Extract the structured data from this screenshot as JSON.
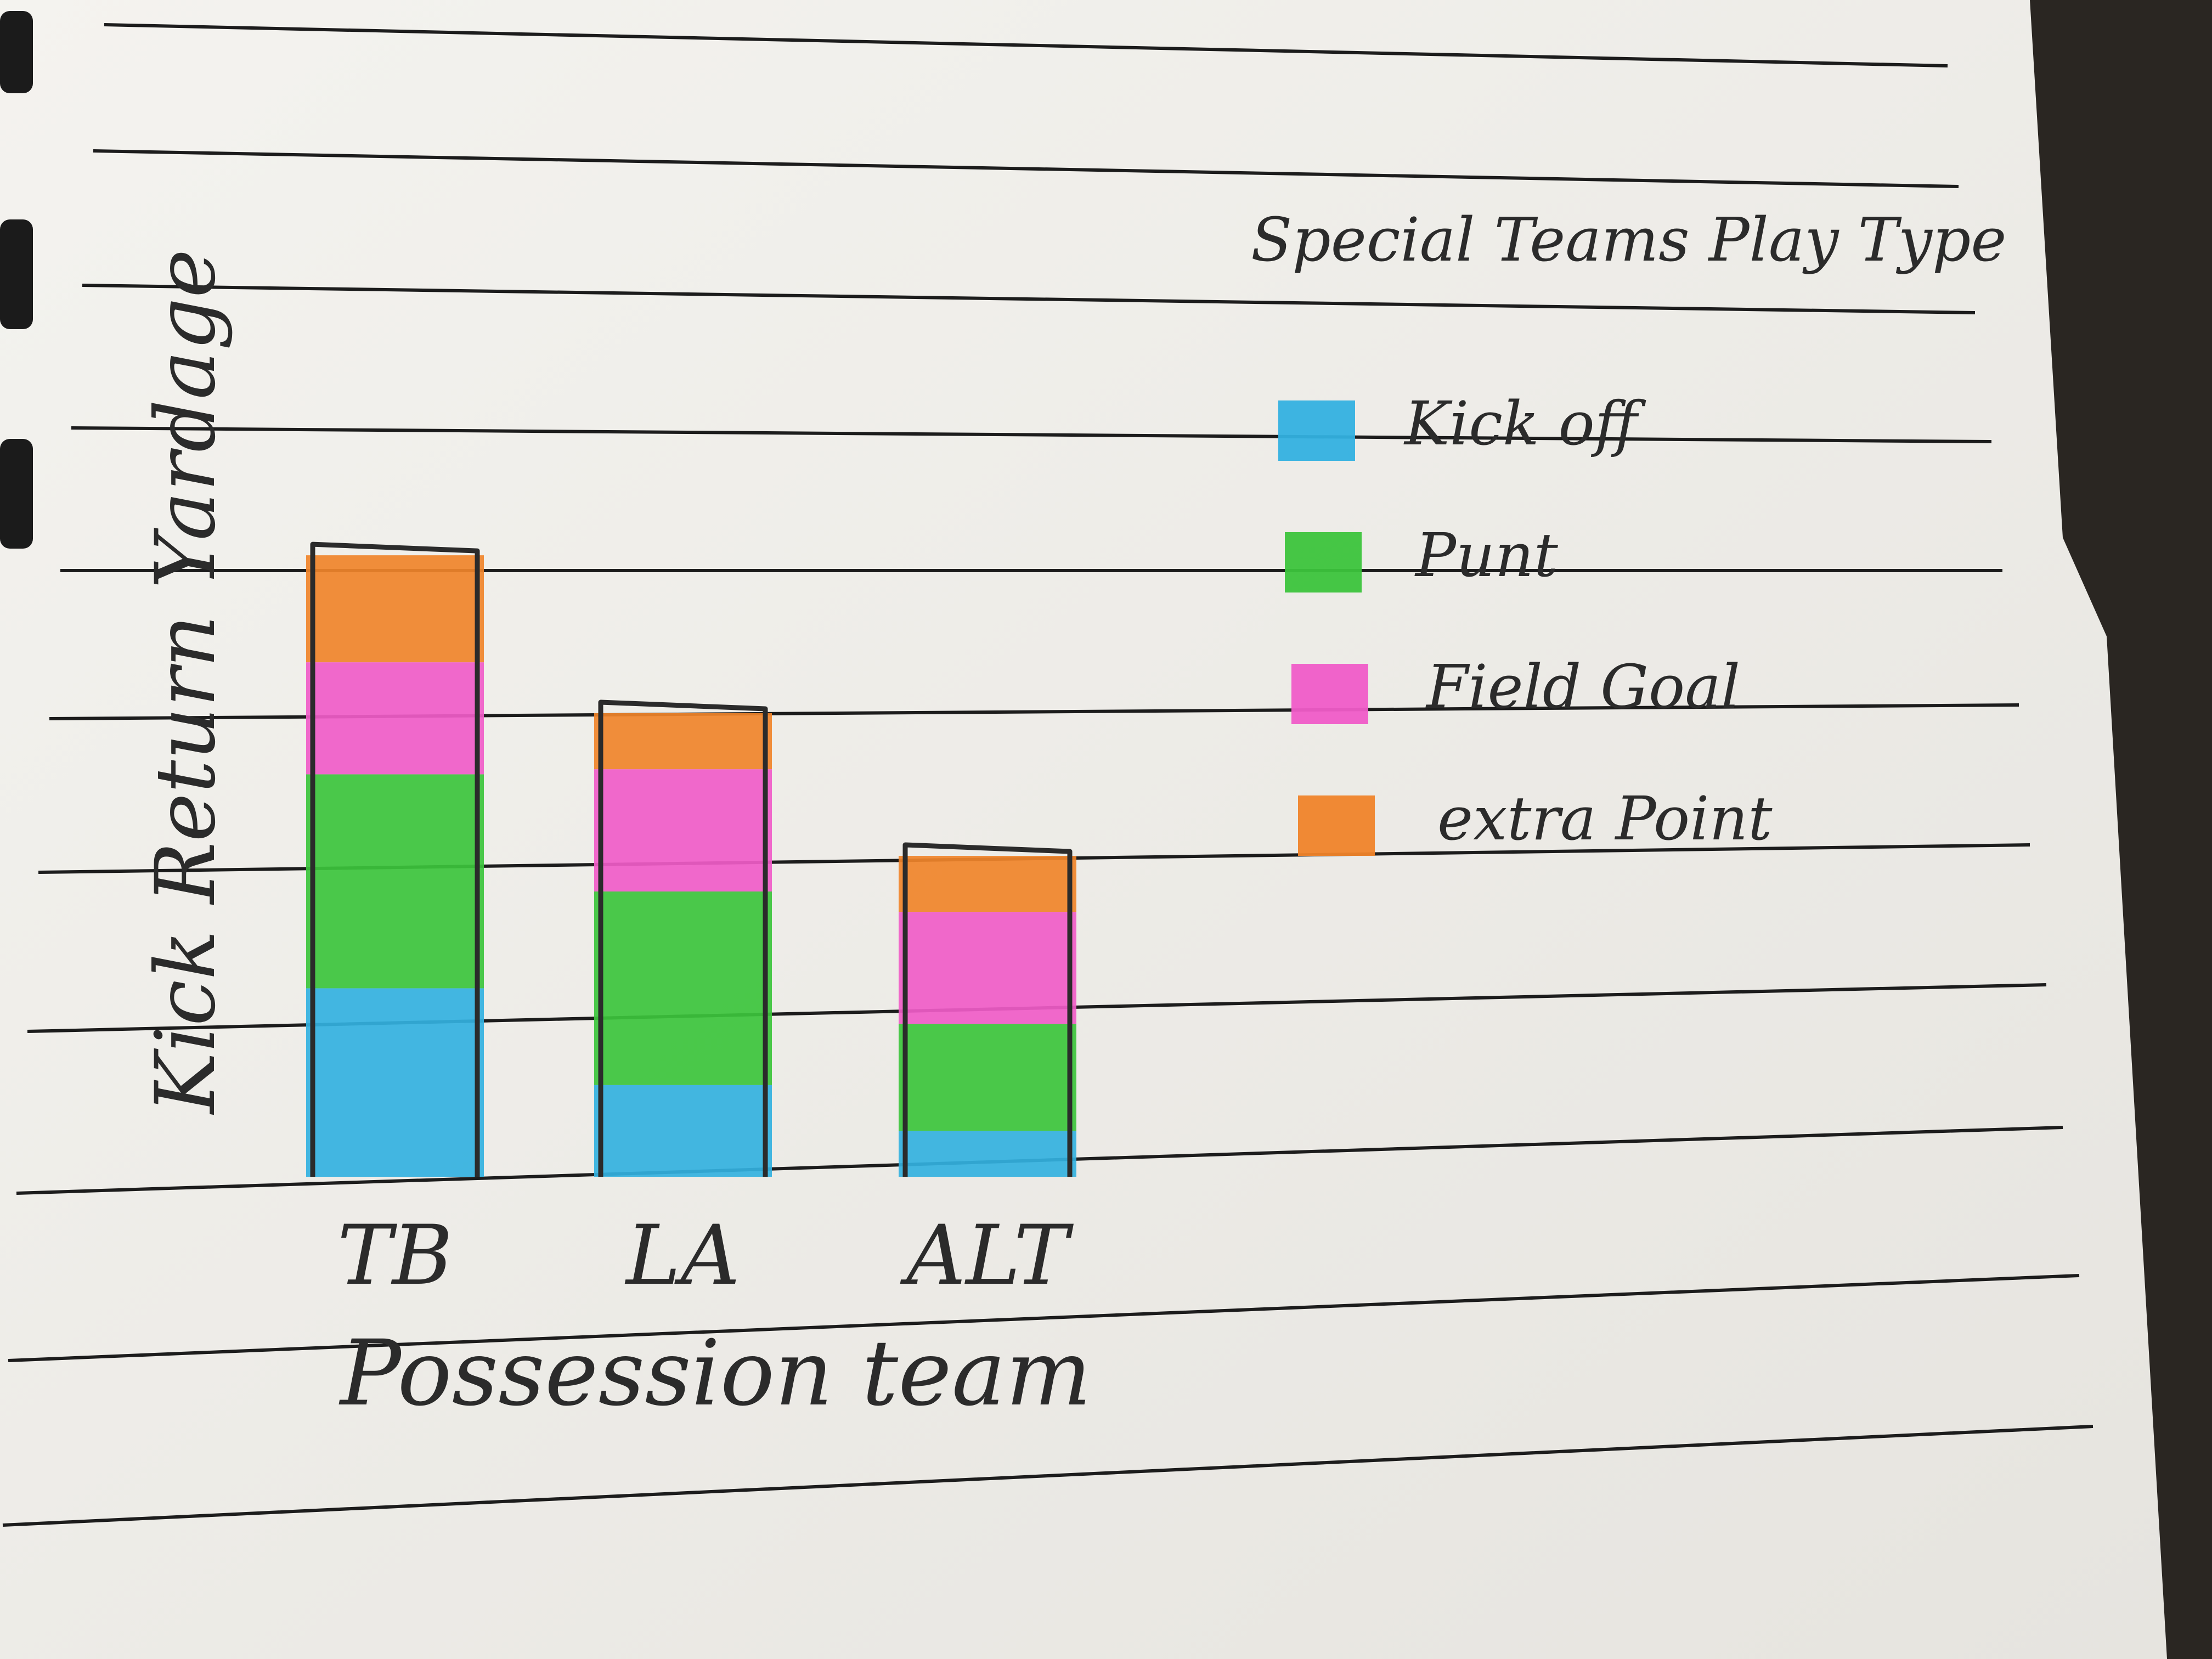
{
  "chart_data": {
    "type": "bar",
    "stacked": true,
    "title": "",
    "xlabel": "Possession team",
    "ylabel": "Kick Return Yardage",
    "categories": [
      "TB",
      "LA",
      "ALT"
    ],
    "series": [
      {
        "name": "Kick off",
        "values": [
          3.7,
          1.8,
          0.9
        ],
        "color": "#33b1e0"
      },
      {
        "name": "Punt",
        "values": [
          4.2,
          3.8,
          2.1
        ],
        "color": "#3cc43c"
      },
      {
        "name": "Field Goal",
        "values": [
          2.2,
          2.4,
          2.2
        ],
        "color": "#f05cc8"
      },
      {
        "name": "extra Point",
        "values": [
          2.1,
          1.1,
          1.1
        ],
        "color": "#f0842a"
      }
    ],
    "legend": {
      "title": "Special Teams Play Type",
      "position": "right"
    },
    "ylim": [
      0,
      14
    ],
    "grid": false
  },
  "colors": {
    "paper": "#f1f0ec",
    "ink": "#2b2b2b",
    "ruled_line": "#1c1c1c",
    "background": "#2a2622"
  }
}
